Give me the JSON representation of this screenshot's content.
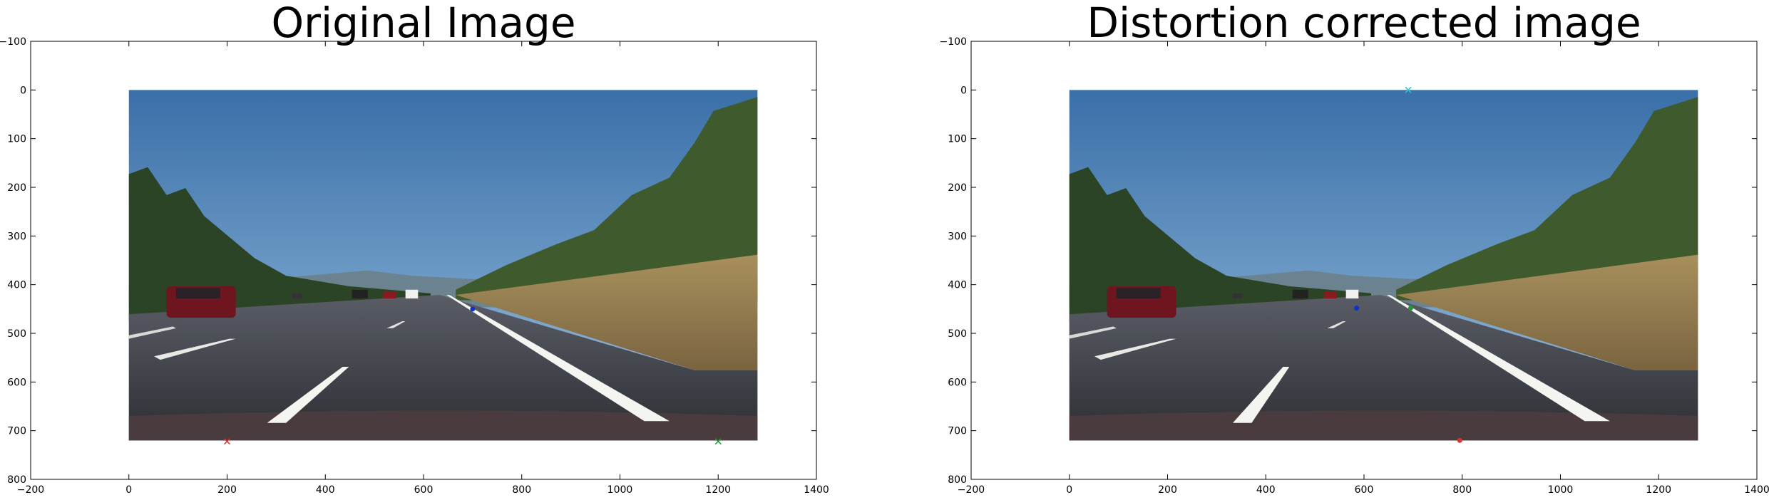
{
  "panels": [
    {
      "title": "Original Image",
      "image": "road-original",
      "xlim": [
        -200,
        1400
      ],
      "ylim": [
        800,
        -100
      ],
      "image_extent": {
        "x": [
          0,
          1280
        ],
        "y": [
          0,
          720
        ]
      },
      "xticks": [
        -200,
        0,
        200,
        400,
        600,
        800,
        1000,
        1200,
        1400
      ],
      "yticks": [
        -100,
        0,
        100,
        200,
        300,
        400,
        500,
        600,
        700,
        800
      ],
      "markers": [
        {
          "x": 200,
          "y": 722,
          "color": "#e03030",
          "shape": "x"
        },
        {
          "x": 1200,
          "y": 722,
          "color": "#1f9a3a",
          "shape": "x"
        },
        {
          "x": 700,
          "y": 450,
          "color": "#1030d0",
          "shape": "dot"
        }
      ]
    },
    {
      "title": "Distortion corrected image",
      "image": "road-corrected",
      "xlim": [
        -200,
        1400
      ],
      "ylim": [
        800,
        -100
      ],
      "image_extent": {
        "x": [
          0,
          1280
        ],
        "y": [
          0,
          720
        ]
      },
      "xticks": [
        -200,
        0,
        200,
        400,
        600,
        800,
        1000,
        1200,
        1400
      ],
      "yticks": [
        -100,
        0,
        100,
        200,
        300,
        400,
        500,
        600,
        700,
        800
      ],
      "markers": [
        {
          "x": 690,
          "y": 0,
          "color": "#22c8c8",
          "shape": "x"
        },
        {
          "x": 585,
          "y": 448,
          "color": "#1030d0",
          "shape": "dot"
        },
        {
          "x": 695,
          "y": 448,
          "color": "#1f9a3a",
          "shape": "dot"
        },
        {
          "x": 795,
          "y": 720,
          "color": "#e03030",
          "shape": "dot"
        }
      ]
    }
  ]
}
